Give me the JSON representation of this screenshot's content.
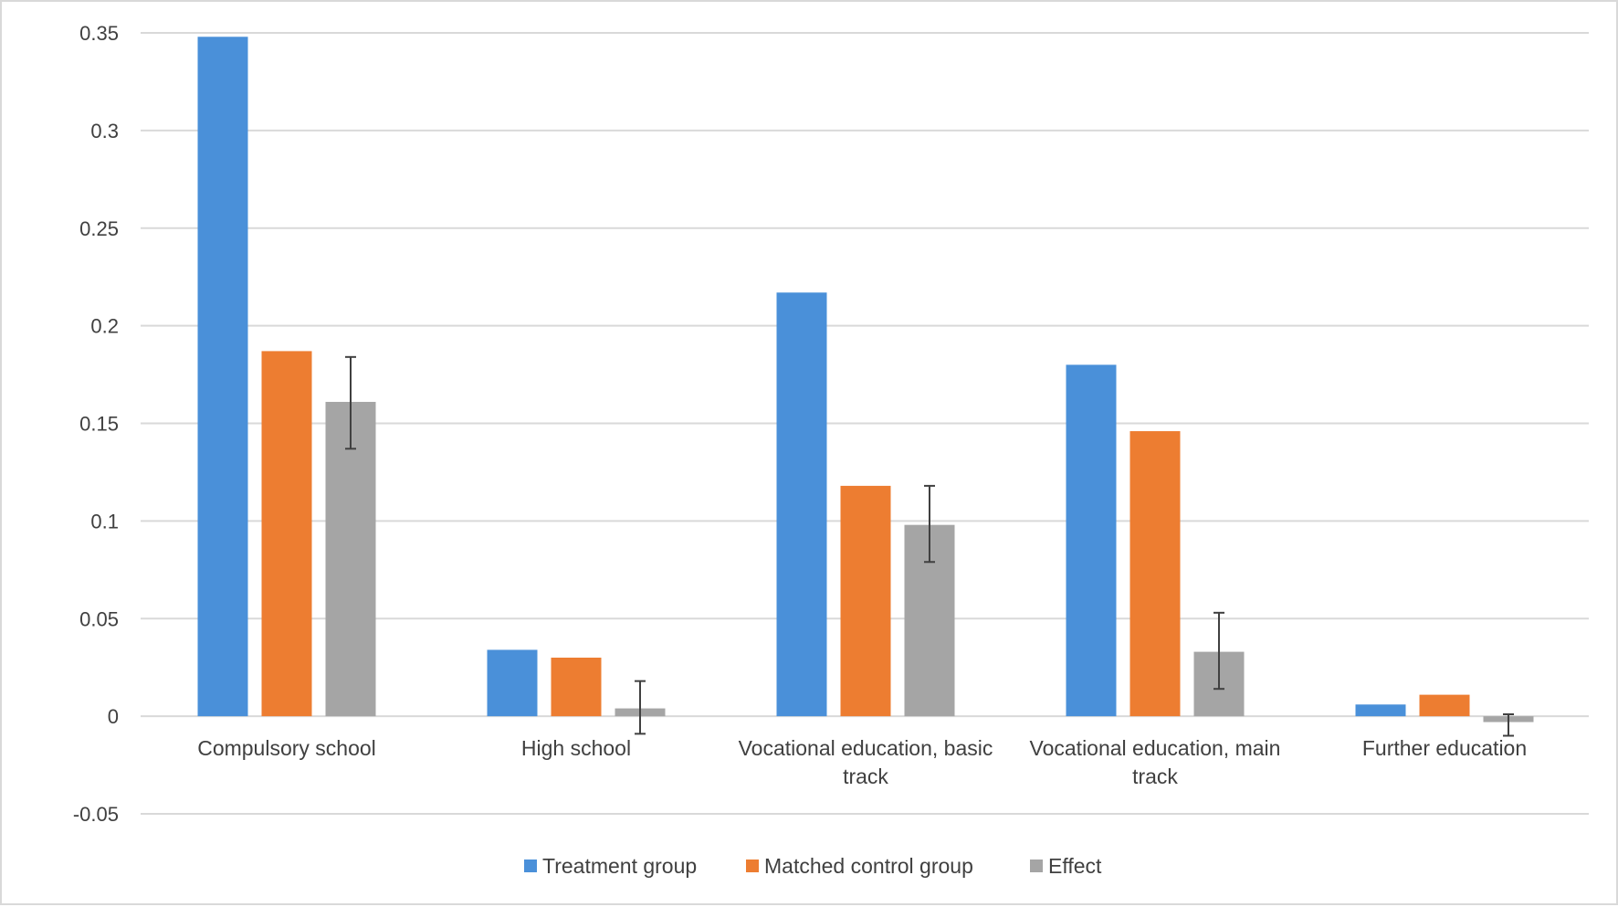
{
  "chart_data": {
    "type": "bar",
    "title": "",
    "xlabel": "",
    "ylabel": "",
    "ylim": [
      -0.05,
      0.35
    ],
    "yticks": [
      "0.35",
      "0.3",
      "0.25",
      "0.2",
      "0.15",
      "0.1",
      "0.05",
      "0",
      "-0.05"
    ],
    "ytick_values": [
      0.35,
      0.3,
      0.25,
      0.2,
      0.15,
      0.1,
      0.05,
      0,
      -0.05
    ],
    "grid": true,
    "legend_position": "bottom",
    "categories": [
      [
        "Compulsory school"
      ],
      [
        "High school"
      ],
      [
        "Vocational education, basic",
        "track"
      ],
      [
        "Vocational education, main",
        "track"
      ],
      [
        "Further education"
      ]
    ],
    "series": [
      {
        "name": "Treatment group",
        "color": "#4a90d9",
        "values": [
          0.348,
          0.034,
          0.217,
          0.18,
          0.006
        ]
      },
      {
        "name": "Matched control group",
        "color": "#ed7d31",
        "values": [
          0.187,
          0.03,
          0.118,
          0.146,
          0.011
        ]
      },
      {
        "name": "Effect",
        "color": "#a5a5a5",
        "values": [
          0.161,
          0.004,
          0.098,
          0.033,
          -0.003
        ],
        "error_low": [
          0.137,
          -0.009,
          0.079,
          0.014,
          -0.01
        ],
        "error_high": [
          0.184,
          0.018,
          0.118,
          0.053,
          0.001
        ]
      }
    ]
  }
}
